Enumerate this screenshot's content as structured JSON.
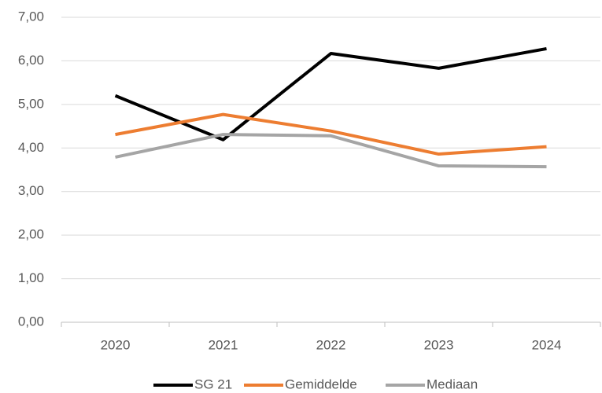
{
  "chart_data": {
    "type": "line",
    "categories": [
      "2020",
      "2021",
      "2022",
      "2023",
      "2024"
    ],
    "series": [
      {
        "name": "SG 21",
        "color": "#000000",
        "values": [
          5.2,
          4.19,
          6.17,
          5.83,
          6.28
        ]
      },
      {
        "name": "Gemiddelde",
        "color": "#ed7d31",
        "values": [
          4.31,
          4.77,
          4.39,
          3.86,
          4.03
        ]
      },
      {
        "name": "Mediaan",
        "color": "#a5a5a5",
        "values": [
          3.79,
          4.31,
          4.28,
          3.59,
          3.57
        ]
      }
    ],
    "ylim": [
      0,
      7
    ],
    "yticks": [
      {
        "value": 0,
        "label": "0,00"
      },
      {
        "value": 1,
        "label": "1,00"
      },
      {
        "value": 2,
        "label": "2,00"
      },
      {
        "value": 3,
        "label": "3,00"
      },
      {
        "value": 4,
        "label": "4,00"
      },
      {
        "value": 5,
        "label": "5,00"
      },
      {
        "value": 6,
        "label": "6,00"
      },
      {
        "value": 7,
        "label": "7,00"
      }
    ],
    "grid": true,
    "legend": "bottom"
  }
}
